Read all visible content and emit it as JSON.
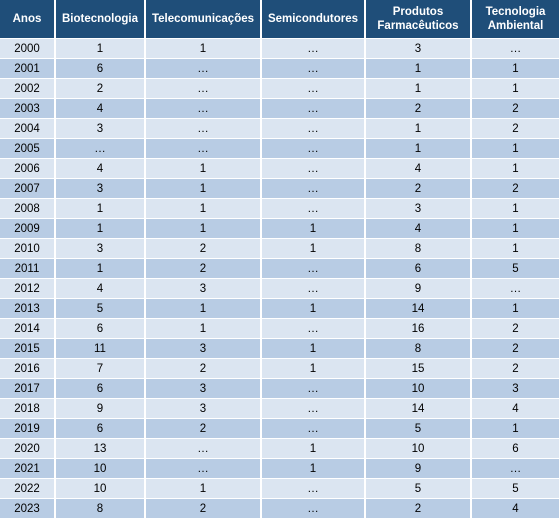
{
  "table": {
    "headers": [
      "Anos",
      "Biotecnologia",
      "Telecomunicações",
      "Semicondutores",
      "Produtos Farmacêuticos",
      "Tecnologia Ambiental"
    ],
    "rows": [
      [
        "2000",
        "1",
        "1",
        "…",
        "3",
        "…"
      ],
      [
        "2001",
        "6",
        "…",
        "…",
        "1",
        "1"
      ],
      [
        "2002",
        "2",
        "…",
        "…",
        "1",
        "1"
      ],
      [
        "2003",
        "4",
        "…",
        "…",
        "2",
        "2"
      ],
      [
        "2004",
        "3",
        "…",
        "…",
        "1",
        "2"
      ],
      [
        "2005",
        "…",
        "…",
        "…",
        "1",
        "1"
      ],
      [
        "2006",
        "4",
        "1",
        "…",
        "4",
        "1"
      ],
      [
        "2007",
        "3",
        "1",
        "…",
        "2",
        "2"
      ],
      [
        "2008",
        "1",
        "1",
        "…",
        "3",
        "1"
      ],
      [
        "2009",
        "1",
        "1",
        "1",
        "4",
        "1"
      ],
      [
        "2010",
        "3",
        "2",
        "1",
        "8",
        "1"
      ],
      [
        "2011",
        "1",
        "2",
        "…",
        "6",
        "5"
      ],
      [
        "2012",
        "4",
        "3",
        "…",
        "9",
        "…"
      ],
      [
        "2013",
        "5",
        "1",
        "1",
        "14",
        "1"
      ],
      [
        "2014",
        "6",
        "1",
        "…",
        "16",
        "2"
      ],
      [
        "2015",
        "11",
        "3",
        "1",
        "8",
        "2"
      ],
      [
        "2016",
        "7",
        "2",
        "1",
        "15",
        "2"
      ],
      [
        "2017",
        "6",
        "3",
        "…",
        "10",
        "3"
      ],
      [
        "2018",
        "9",
        "3",
        "…",
        "14",
        "4"
      ],
      [
        "2019",
        "6",
        "2",
        "…",
        "5",
        "1"
      ],
      [
        "2020",
        "13",
        "…",
        "1",
        "10",
        "6"
      ],
      [
        "2021",
        "10",
        "…",
        "1",
        "9",
        "…"
      ],
      [
        "2022",
        "10",
        "1",
        "…",
        "5",
        "5"
      ],
      [
        "2023",
        "8",
        "2",
        "…",
        "2",
        "4"
      ]
    ]
  }
}
